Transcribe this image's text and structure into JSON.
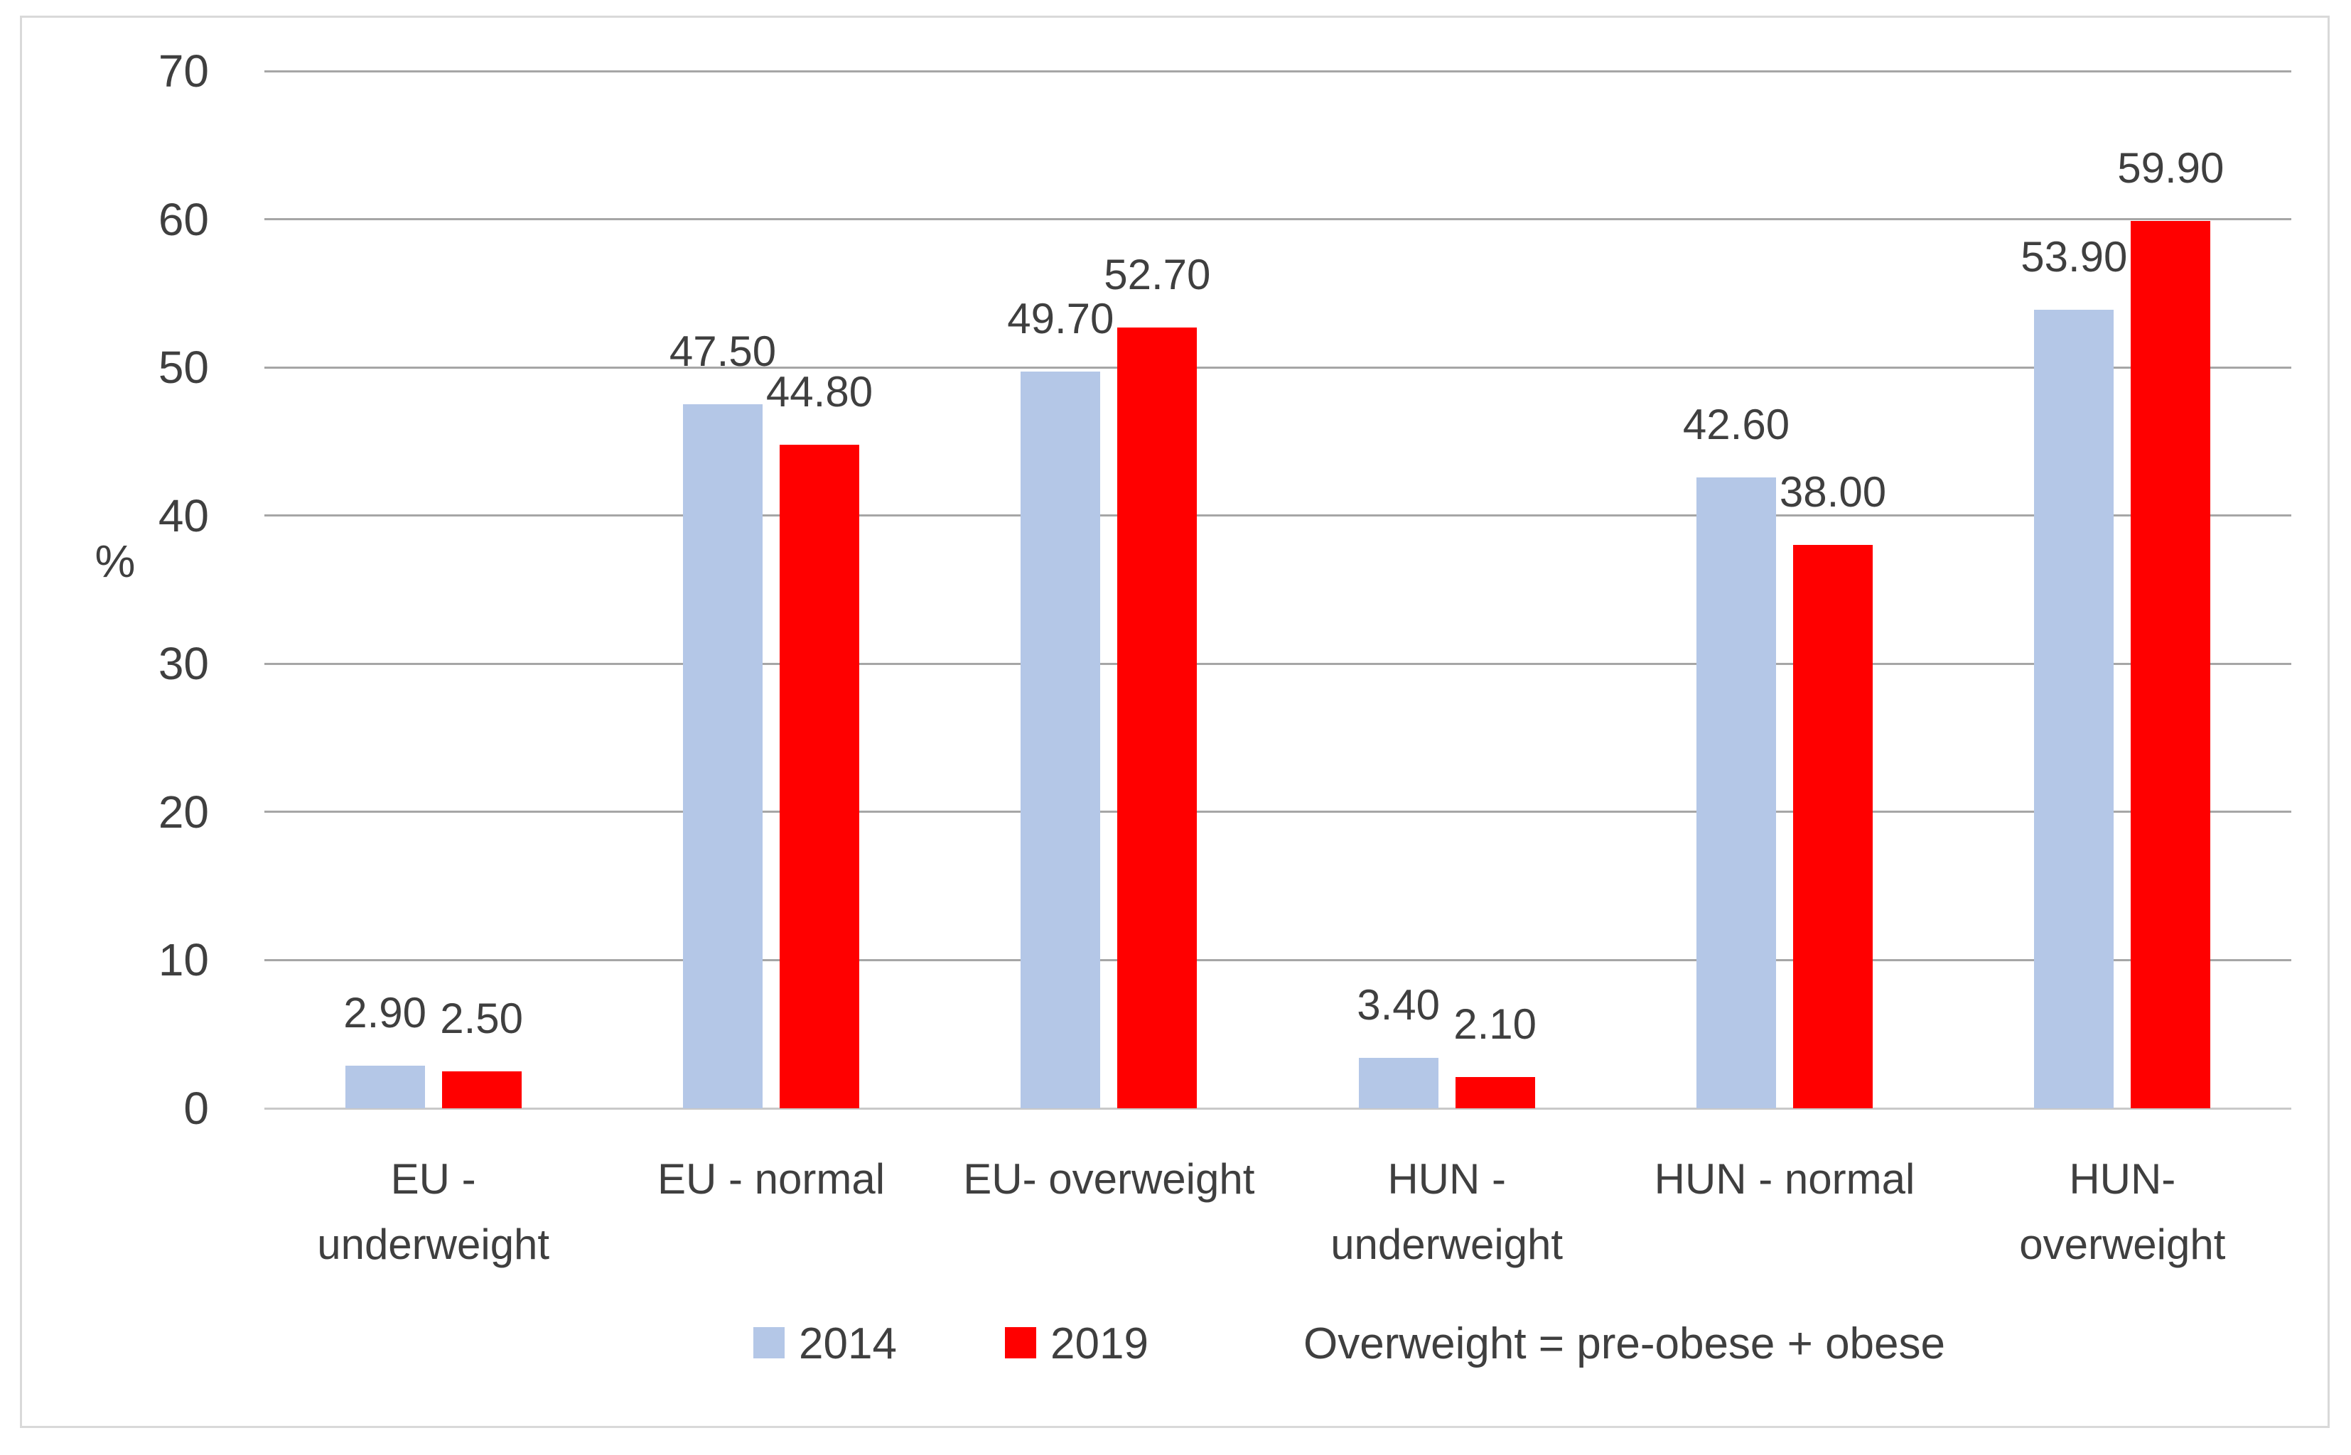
{
  "chart_data": {
    "type": "bar",
    "title": "",
    "xlabel": "",
    "ylabel": "%",
    "ylim": [
      0,
      70
    ],
    "yticks": [
      0,
      10,
      20,
      30,
      40,
      50,
      60,
      70
    ],
    "grid": true,
    "legend_position": "bottom",
    "categories": [
      "EU -\nunderweight",
      "EU - normal",
      "EU- overweight",
      "HUN -\nunderweight",
      "HUN - normal",
      "HUN-\noverweight"
    ],
    "series": [
      {
        "name": "2014",
        "color": "#B4C7E7",
        "values": [
          2.9,
          47.5,
          49.7,
          3.4,
          42.6,
          53.9
        ]
      },
      {
        "name": "2019",
        "color": "#FF0000",
        "values": [
          2.5,
          44.8,
          52.7,
          2.1,
          38.0,
          59.9
        ]
      }
    ],
    "data_label_decimals": 2,
    "annotation": "Overweight = pre-obese + obese"
  },
  "colors": {
    "background": "#FFFFFF",
    "border": "#D9D9D9",
    "gridline": "#A6A6A6",
    "axis_line": "#C9C9C9",
    "text": "#3F3F3F"
  }
}
